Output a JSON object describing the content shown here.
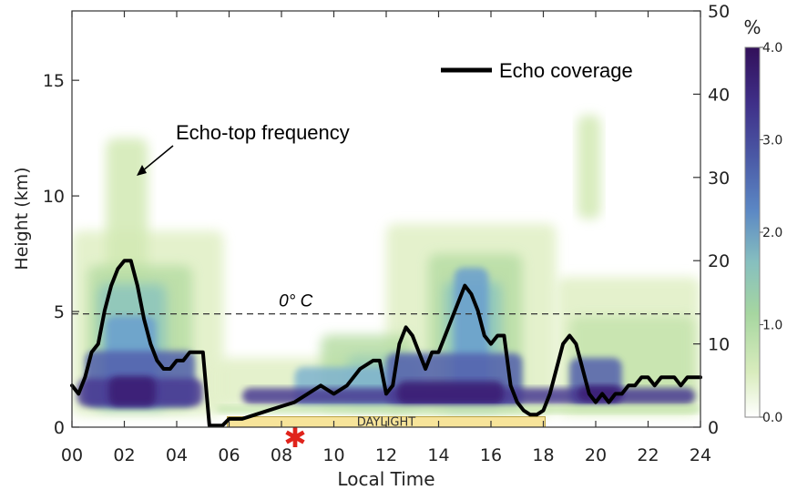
{
  "chart_data": {
    "type": "line",
    "title": "",
    "xlabel": "Local Time",
    "ylabel_left": "Height (km)",
    "ylabel_right": "",
    "xlim": [
      0,
      24
    ],
    "ylim_left": [
      0,
      18
    ],
    "ylim_right": [
      0,
      50
    ],
    "x_ticks": [
      "00",
      "02",
      "04",
      "06",
      "08",
      "10",
      "12",
      "14",
      "16",
      "18",
      "20",
      "22",
      "24"
    ],
    "y_left_ticks": [
      "0",
      "5",
      "10",
      "15"
    ],
    "y_right_ticks": [
      "0",
      "10",
      "20",
      "30",
      "40",
      "50"
    ],
    "series": [
      {
        "name": "Echo coverage",
        "axis": "right",
        "color": "#000000",
        "x": [
          0,
          0.25,
          0.5,
          0.75,
          1,
          1.25,
          1.5,
          1.75,
          2,
          2.25,
          2.5,
          2.75,
          3,
          3.25,
          3.5,
          3.75,
          4,
          4.25,
          4.5,
          4.75,
          5,
          5.25,
          5.5,
          5.75,
          6,
          6.5,
          7,
          7.5,
          8,
          8.5,
          9,
          9.5,
          10,
          10.5,
          11,
          11.5,
          11.75,
          12,
          12.25,
          12.5,
          12.75,
          13,
          13.25,
          13.5,
          13.75,
          14,
          14.25,
          14.5,
          14.75,
          15,
          15.25,
          15.5,
          15.75,
          16,
          16.25,
          16.5,
          16.75,
          17,
          17.25,
          17.5,
          17.75,
          18,
          18.25,
          18.5,
          18.75,
          19,
          19.25,
          19.5,
          19.75,
          20,
          20.25,
          20.5,
          20.75,
          21,
          21.25,
          21.5,
          21.75,
          22,
          22.25,
          22.5,
          22.75,
          23,
          23.25,
          23.5,
          23.75,
          24
        ],
        "values": [
          5,
          4,
          6,
          9,
          10,
          14,
          17,
          19,
          20,
          20,
          17,
          13,
          10,
          8,
          7,
          7,
          8,
          8,
          9,
          9,
          9,
          0.2,
          0.2,
          0.2,
          1,
          1,
          1.5,
          2,
          2.5,
          3,
          4,
          5,
          4,
          5,
          7,
          8,
          8,
          4,
          5,
          10,
          12,
          11,
          9,
          7,
          9,
          9,
          11,
          13,
          15,
          17,
          16,
          14,
          11,
          10,
          11,
          11,
          5,
          3,
          2,
          1.5,
          1.5,
          2,
          4,
          7,
          10,
          11,
          10,
          7,
          4,
          3,
          4,
          3,
          4,
          4,
          5,
          5,
          6,
          6,
          5,
          6,
          6,
          6,
          5,
          6,
          6,
          6
        ]
      }
    ],
    "colorbar": {
      "label": "%",
      "ticks": [
        "4.0",
        "3.0",
        "2.0",
        "1.0",
        "0.0"
      ],
      "range": [
        0,
        4
      ],
      "colors": [
        "#ffffff",
        "#d9ecbd",
        "#a6d6a0",
        "#86bfbf",
        "#5b87c4",
        "#4b5aa6",
        "#3f2f88",
        "#32105a"
      ]
    },
    "reference_line": {
      "label": "0° C",
      "height_km": 4.9
    },
    "annotations": {
      "echo_top": "Echo-top frequency",
      "daylight": "DAYLIGHT",
      "daylight_range": [
        6,
        18
      ]
    },
    "legend": {
      "entry": "Echo coverage",
      "placement": "top-right"
    }
  }
}
